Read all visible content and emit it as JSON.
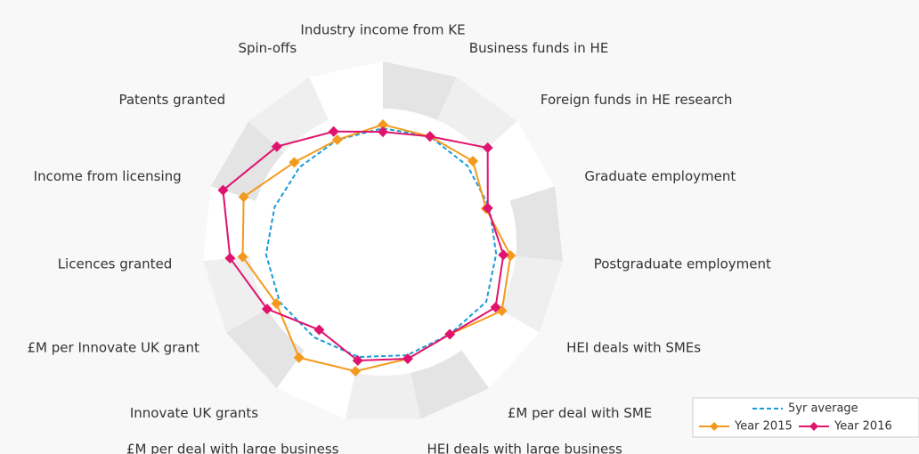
{
  "chart_data": {
    "type": "radar",
    "categories": [
      "Industry income from KE",
      "Business funds in HE",
      "Foreign funds in HE research",
      "Graduate employment",
      "Postgraduate employment",
      "HEI deals with SMEs",
      "£M per deal with SME",
      "HEI deals with large business",
      "£M per deal with large business",
      "Innovate UK grants",
      "£M per Innovate UK grant",
      "Licences granted",
      "Income from licensing",
      "Patents granted",
      "Spin-offs"
    ],
    "series": [
      {
        "name": "5yr average",
        "color": "#1a9bd7",
        "line_style": "dashed",
        "marker": "none",
        "values": [
          63,
          64,
          63,
          62,
          63,
          66,
          63,
          64,
          65,
          65,
          66,
          65,
          63,
          62,
          62
        ]
      },
      {
        "name": "Year 2015",
        "color": "#f39a1e",
        "line_style": "solid",
        "marker": "diamond",
        "values": [
          65,
          64,
          67,
          60,
          71,
          76,
          63,
          66,
          73,
          79,
          68,
          78,
          81,
          66,
          62
        ]
      },
      {
        "name": "Year 2016",
        "color": "#e0136e",
        "line_style": "solid",
        "marker": "diamond",
        "values": [
          61,
          64,
          78,
          61,
          67,
          72,
          63,
          66,
          67,
          60,
          74,
          85,
          93,
          79,
          67
        ]
      }
    ],
    "ylim": [
      0,
      100
    ]
  }
}
